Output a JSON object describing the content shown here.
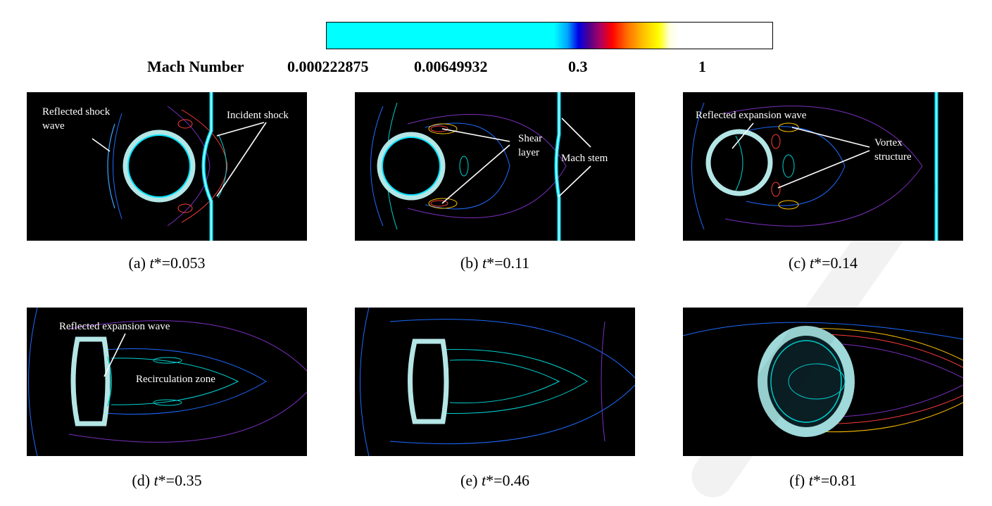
{
  "colorbar": {
    "title": "Mach Number",
    "ticks": [
      "0.000222875",
      "0.00649932",
      "0.3",
      "1"
    ]
  },
  "panels": [
    {
      "id": "a",
      "label_prefix": "(a) ",
      "var": "t",
      "value": "*=0.053",
      "annotations": [
        "Reflected shock",
        "wave",
        "Incident shock"
      ]
    },
    {
      "id": "b",
      "label_prefix": "(b) ",
      "var": "t",
      "value": "*=0.11",
      "annotations": [
        "Shear",
        "layer",
        "Mach stem"
      ]
    },
    {
      "id": "c",
      "label_prefix": "(c) ",
      "var": "t",
      "value": "*=0.14",
      "annotations": [
        "Reflected expansion wave",
        "Vortex",
        "structure"
      ]
    },
    {
      "id": "d",
      "label_prefix": "(d) ",
      "var": "t",
      "value": "*=0.35",
      "annotations": [
        "Reflected expansion wave",
        "Recirculation zone"
      ]
    },
    {
      "id": "e",
      "label_prefix": "(e) ",
      "var": "t",
      "value": "*=0.46",
      "annotations": []
    },
    {
      "id": "f",
      "label_prefix": "(f) ",
      "var": "t",
      "value": "*=0.81",
      "annotations": []
    }
  ],
  "colors": {
    "background": "#000000",
    "shock": "#00ffff",
    "droplet_edge": "#9fd9d9"
  }
}
